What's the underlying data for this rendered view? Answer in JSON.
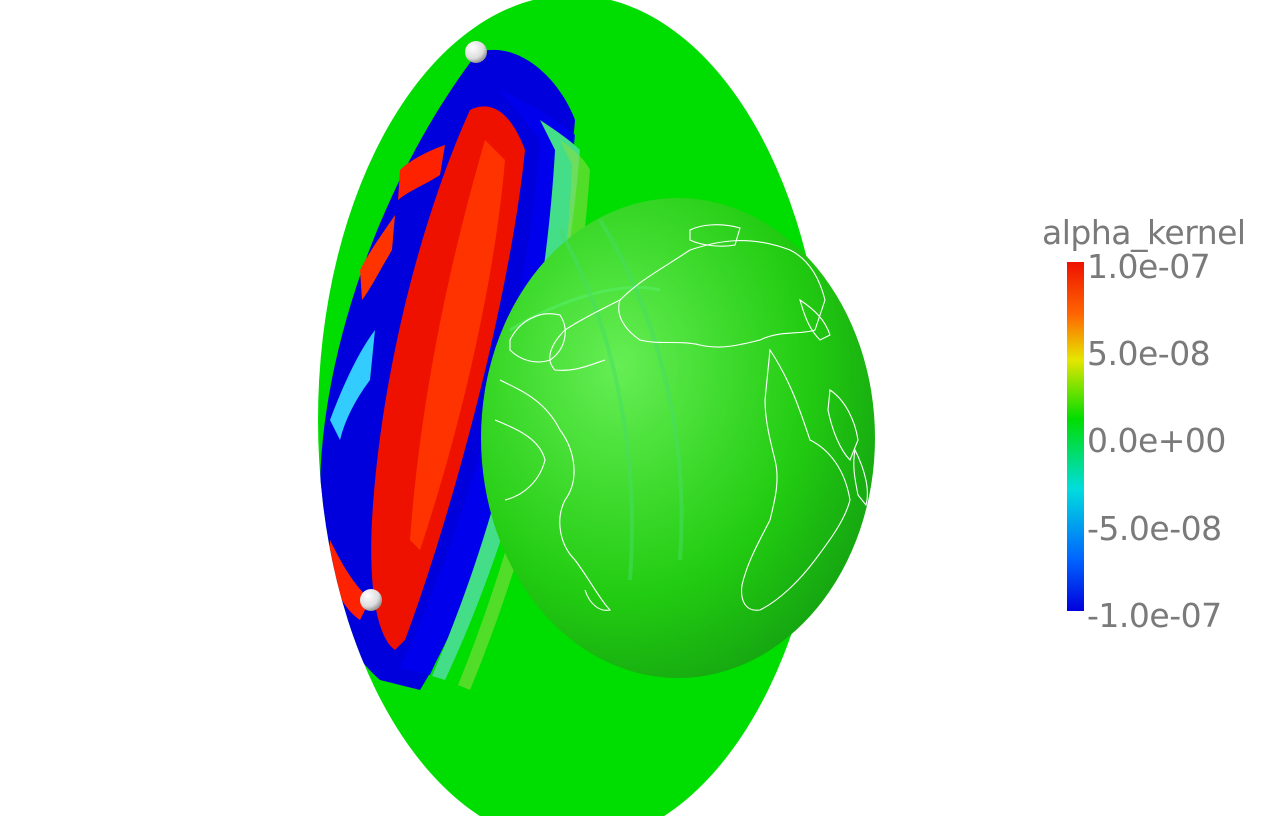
{
  "colorbar": {
    "title": "alpha_kernel",
    "labels": [
      "1.0e-07",
      "5.0e-08",
      "0.0e+00",
      "-5.0e-08",
      "-1.0e-07"
    ],
    "range": [
      -1e-07,
      1e-07
    ],
    "colors": [
      "#ff0000",
      "#ff8000",
      "#e6e600",
      "#00e000",
      "#00e0e0",
      "#0050ff",
      "#0000e0"
    ]
  },
  "scene": {
    "background": "#ffffff",
    "cross_section_color": "#00dd00",
    "globe_color": "#33dd33",
    "coastline_color": "#ffffff",
    "markers": [
      "source-marker",
      "receiver-marker"
    ]
  }
}
